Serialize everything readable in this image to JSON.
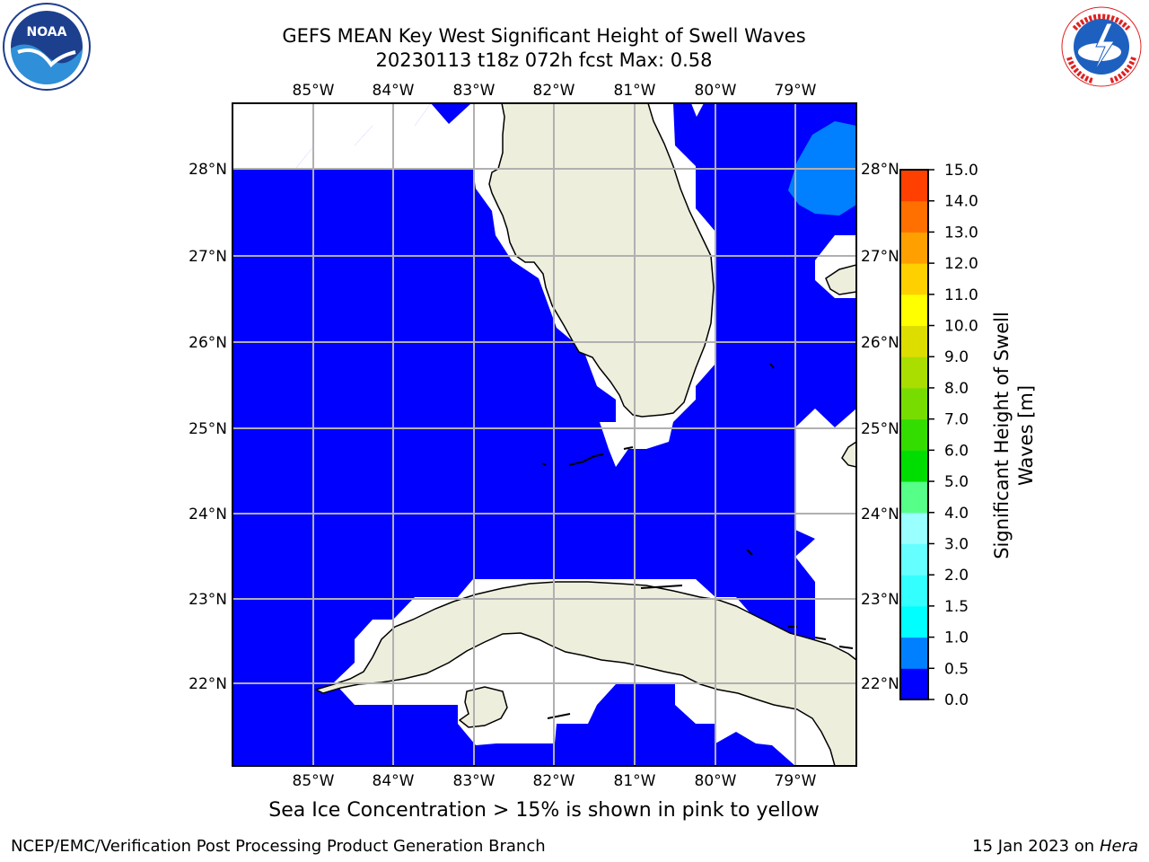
{
  "header": {
    "title_line1": "GEFS MEAN Key West Significant Height of Swell Waves",
    "title_line2": "20230113 t18z 072h fcst   Max: 0.58"
  },
  "logos": {
    "left": {
      "name": "NOAA",
      "text": "NOAA",
      "ring_text": "NATIONAL OCEANIC AND ATMOSPHERIC ADMINISTRATION · U.S. DEPARTMENT OF COMMERCE"
    },
    "right": {
      "name": "National Weather Service",
      "ring_text": "NATIONAL WEATHER SERVICE"
    }
  },
  "map": {
    "lon_labels": [
      "85°W",
      "84°W",
      "83°W",
      "82°W",
      "81°W",
      "80°W",
      "79°W"
    ],
    "lat_labels": [
      "28°N",
      "27°N",
      "26°N",
      "25°N",
      "24°N",
      "23°N",
      "22°N"
    ],
    "regions": [
      "Florida peninsula",
      "Florida Keys",
      "Cuba",
      "Isla de la Juventud",
      "Andros Island",
      "Bahamas"
    ],
    "field": "Significant Height of Swell Waves",
    "field_max": 0.58,
    "colors": {
      "ocean_low": "#0000ff",
      "ocean_mid": "#0080ff",
      "land": "#eeeedd",
      "grid": "#b0b0b0"
    }
  },
  "colorbar": {
    "label": "Significant Height of Swell Waves [m]",
    "label_line1": "Significant Height of Swell",
    "label_line2": "Waves [m]",
    "ticks": [
      "0.0",
      "0.5",
      "1.0",
      "1.5",
      "2.0",
      "3.0",
      "4.0",
      "5.0",
      "6.0",
      "7.0",
      "8.0",
      "9.0",
      "10.0",
      "11.0",
      "12.0",
      "13.0",
      "14.0",
      "15.0"
    ],
    "colors": [
      "#0000ff",
      "#0080ff",
      "#00ffff",
      "#33ffff",
      "#66ffff",
      "#99ffff",
      "#55ff88",
      "#00dd00",
      "#33dd00",
      "#77dd00",
      "#aadd00",
      "#dddd00",
      "#ffff00",
      "#ffd000",
      "#ffa000",
      "#ff7000",
      "#ff4000",
      "#ff0000"
    ]
  },
  "caption": "Sea Ice Concentration > 15% is shown in pink to yellow",
  "footer": {
    "left": "NCEP/EMC/Verification Post Processing Product Generation Branch",
    "right_date": "15 Jan 2023 on ",
    "right_host": "Hera"
  }
}
